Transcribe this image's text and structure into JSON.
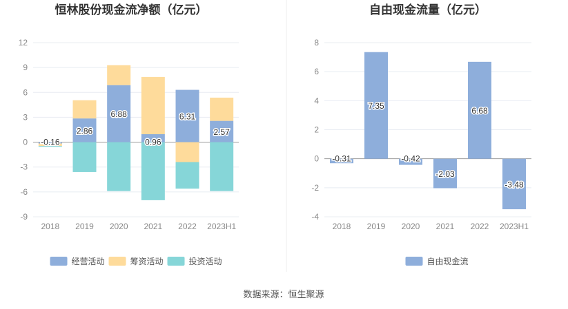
{
  "source": "数据来源：恒生聚源",
  "chart_data": [
    {
      "type": "bar",
      "stacked": true,
      "title": "恒林股份现金流净额（亿元）",
      "categories": [
        "2018",
        "2019",
        "2020",
        "2021",
        "2022",
        "2023H1"
      ],
      "ylim": [
        -9,
        12
      ],
      "yticks": [
        12,
        9,
        6,
        3,
        0,
        -3,
        -6,
        -9
      ],
      "grid": true,
      "legend": "bottom",
      "series": [
        {
          "name": "经营活动",
          "color": "#8eaedb",
          "values": [
            -0.16,
            2.86,
            6.88,
            0.96,
            6.31,
            2.57
          ],
          "labels": [
            "-0.16",
            "2.86",
            "6.88",
            "0.96",
            "6.31",
            "2.57"
          ]
        },
        {
          "name": "筹资活动",
          "color": "#fedb9b",
          "values": [
            -0.3,
            2.2,
            2.4,
            6.9,
            -2.4,
            2.8
          ]
        },
        {
          "name": "投资活动",
          "color": "#86d6d8",
          "values": [
            -0.1,
            -3.6,
            -5.9,
            -7.0,
            -3.2,
            -5.9
          ]
        }
      ]
    },
    {
      "type": "bar",
      "title": "自由现金流量（亿元）",
      "categories": [
        "2018",
        "2019",
        "2020",
        "2021",
        "2022",
        "2023H1"
      ],
      "ylim": [
        -4,
        8
      ],
      "yticks": [
        8,
        6,
        4,
        2,
        0,
        -2,
        -4
      ],
      "grid": true,
      "legend": "bottom",
      "series": [
        {
          "name": "自由现金流",
          "color": "#8eaedb",
          "values": [
            -0.31,
            7.35,
            -0.42,
            -2.03,
            6.68,
            -3.48
          ],
          "labels": [
            "-0.31",
            "7.35",
            "-0.42",
            "-2.03",
            "6.68",
            "-3.48"
          ]
        }
      ]
    }
  ]
}
